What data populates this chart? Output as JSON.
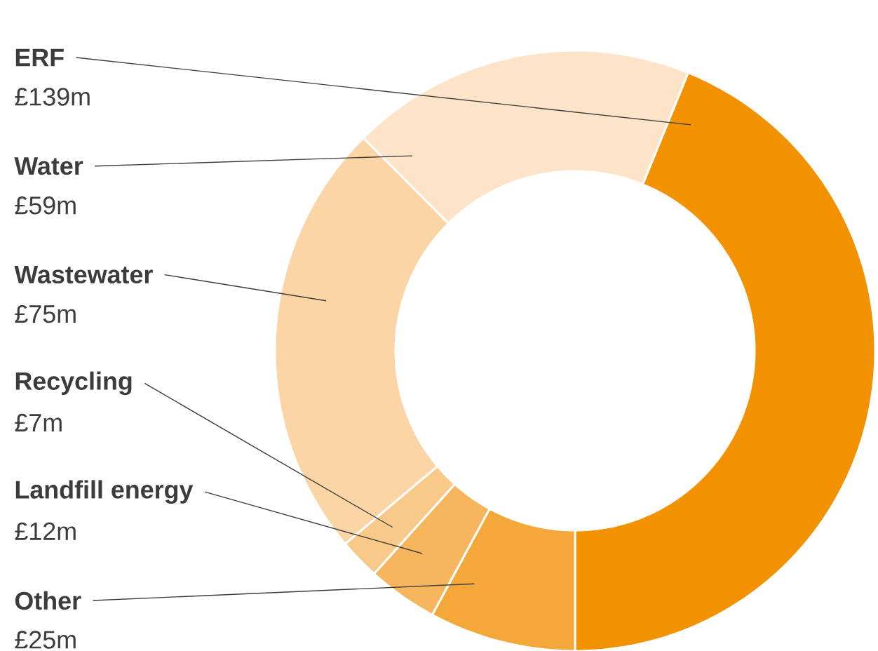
{
  "chart_data": {
    "type": "donut",
    "categories": [
      "ERF",
      "Water",
      "Wastewater",
      "Recycling",
      "Landfill energy",
      "Other"
    ],
    "values": [
      139,
      59,
      75,
      7,
      12,
      25
    ],
    "colors": [
      "#f39200",
      "#fde4c8",
      "#fbd5a5",
      "#f9c98a",
      "#f7b55e",
      "#f5a83a"
    ],
    "value_labels": [
      "£139m",
      "£59m",
      "£75m",
      "£7m",
      "£12m",
      "£25m"
    ]
  }
}
